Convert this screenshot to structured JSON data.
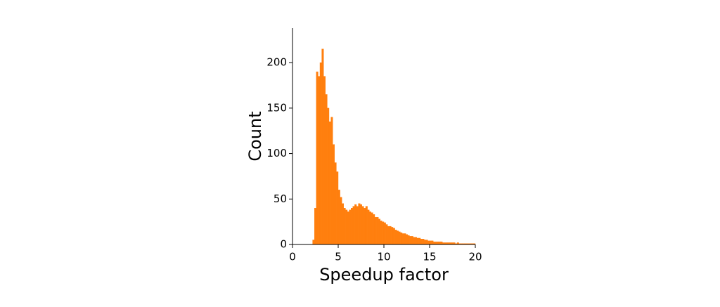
{
  "chart_data": {
    "type": "histogram",
    "x_label": "Speedup factor",
    "y_label": "Count",
    "color": "#ff7f0e",
    "bins": [
      2.2,
      2.4,
      2.6,
      2.8,
      3.0,
      3.2,
      3.4,
      3.6,
      3.8,
      4.0,
      4.2,
      4.4,
      4.6,
      4.8,
      5.0,
      5.2,
      5.4,
      5.6,
      5.8,
      6.0,
      6.2,
      6.4,
      6.6,
      6.8,
      7.0,
      7.2,
      7.4,
      7.6,
      7.8,
      8.0,
      8.2,
      8.4,
      8.6,
      8.8,
      9.0,
      9.2,
      9.4,
      9.6,
      9.8,
      10.0,
      10.2,
      10.4,
      10.6,
      10.8,
      11.0,
      11.2,
      11.4,
      11.6,
      11.8,
      12.0,
      12.2,
      12.4,
      12.6,
      12.8,
      13.0,
      13.2,
      13.4,
      13.6,
      13.8,
      14.0,
      14.2,
      14.4,
      14.6,
      14.8,
      15.0,
      15.2,
      15.4,
      15.6,
      15.8,
      16.0,
      16.2,
      16.4,
      16.6,
      16.8,
      17.0,
      17.2,
      17.4,
      17.6,
      17.8,
      18.0,
      18.2,
      18.4,
      18.6,
      18.8,
      19.0,
      19.2,
      19.4,
      19.6,
      19.8,
      20.0
    ],
    "values": [
      5,
      40,
      190,
      185,
      200,
      215,
      185,
      165,
      150,
      135,
      140,
      110,
      90,
      80,
      60,
      52,
      45,
      40,
      38,
      36,
      38,
      40,
      42,
      44,
      42,
      45,
      44,
      42,
      40,
      42,
      38,
      36,
      35,
      33,
      30,
      30,
      28,
      26,
      25,
      24,
      22,
      20,
      20,
      19,
      18,
      16,
      15,
      14,
      13,
      12,
      12,
      11,
      10,
      9,
      9,
      8,
      8,
      7,
      7,
      6,
      6,
      5,
      5,
      4,
      4,
      4,
      3,
      3,
      3,
      3,
      3,
      2,
      2,
      2,
      2,
      2,
      2,
      2,
      1,
      2,
      1,
      1,
      1,
      1,
      1,
      1,
      1,
      1,
      1
    ],
    "xlim": [
      0,
      20
    ],
    "xticks": [
      0,
      5,
      10,
      15,
      20
    ],
    "ylim": [
      0,
      238
    ],
    "yticks": [
      0,
      50,
      100,
      150,
      200
    ]
  }
}
